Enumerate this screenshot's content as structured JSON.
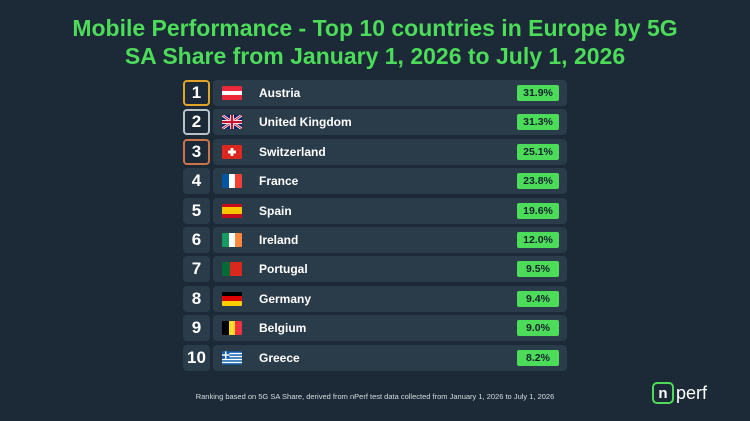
{
  "title_line1": "Mobile Performance - Top 10 countries in Europe by 5G",
  "title_line2": "SA Share from January 1, 2026 to July 1, 2026",
  "footnote": "Ranking based on 5G SA Share, derived from nPerf test data collected from January 1, 2026 to July 1, 2026",
  "logo": {
    "mark": "n",
    "text": "perf"
  },
  "colors": {
    "accent": "#4ddb5a",
    "background": "#1b2a36",
    "row": "#2a3c4a",
    "gold": "#e0a526",
    "silver": "#b9c2c8",
    "bronze": "#c9744a"
  },
  "chart_data": {
    "type": "table",
    "columns": [
      "rank",
      "country",
      "value"
    ],
    "rows": [
      {
        "rank": "1",
        "country": "Austria",
        "value": 31.9,
        "label": "31.9%",
        "flag": "flag-austria-icon"
      },
      {
        "rank": "2",
        "country": "United Kingdom",
        "value": 31.3,
        "label": "31.3%",
        "flag": "flag-united-kingdom-icon"
      },
      {
        "rank": "3",
        "country": "Switzerland",
        "value": 25.1,
        "label": "25.1%",
        "flag": "flag-switzerland-icon"
      },
      {
        "rank": "4",
        "country": "France",
        "value": 23.8,
        "label": "23.8%",
        "flag": "flag-france-icon"
      },
      {
        "rank": "5",
        "country": "Spain",
        "value": 19.6,
        "label": "19.6%",
        "flag": "flag-spain-icon"
      },
      {
        "rank": "6",
        "country": "Ireland",
        "value": 12.0,
        "label": "12.0%",
        "flag": "flag-ireland-icon"
      },
      {
        "rank": "7",
        "country": "Portugal",
        "value": 9.5,
        "label": "9.5%",
        "flag": "flag-portugal-icon"
      },
      {
        "rank": "8",
        "country": "Germany",
        "value": 9.4,
        "label": "9.4%",
        "flag": "flag-germany-icon"
      },
      {
        "rank": "9",
        "country": "Belgium",
        "value": 9.0,
        "label": "9.0%",
        "flag": "flag-belgium-icon"
      },
      {
        "rank": "10",
        "country": "Greece",
        "value": 8.2,
        "label": "8.2%",
        "flag": "flag-greece-icon"
      }
    ]
  }
}
